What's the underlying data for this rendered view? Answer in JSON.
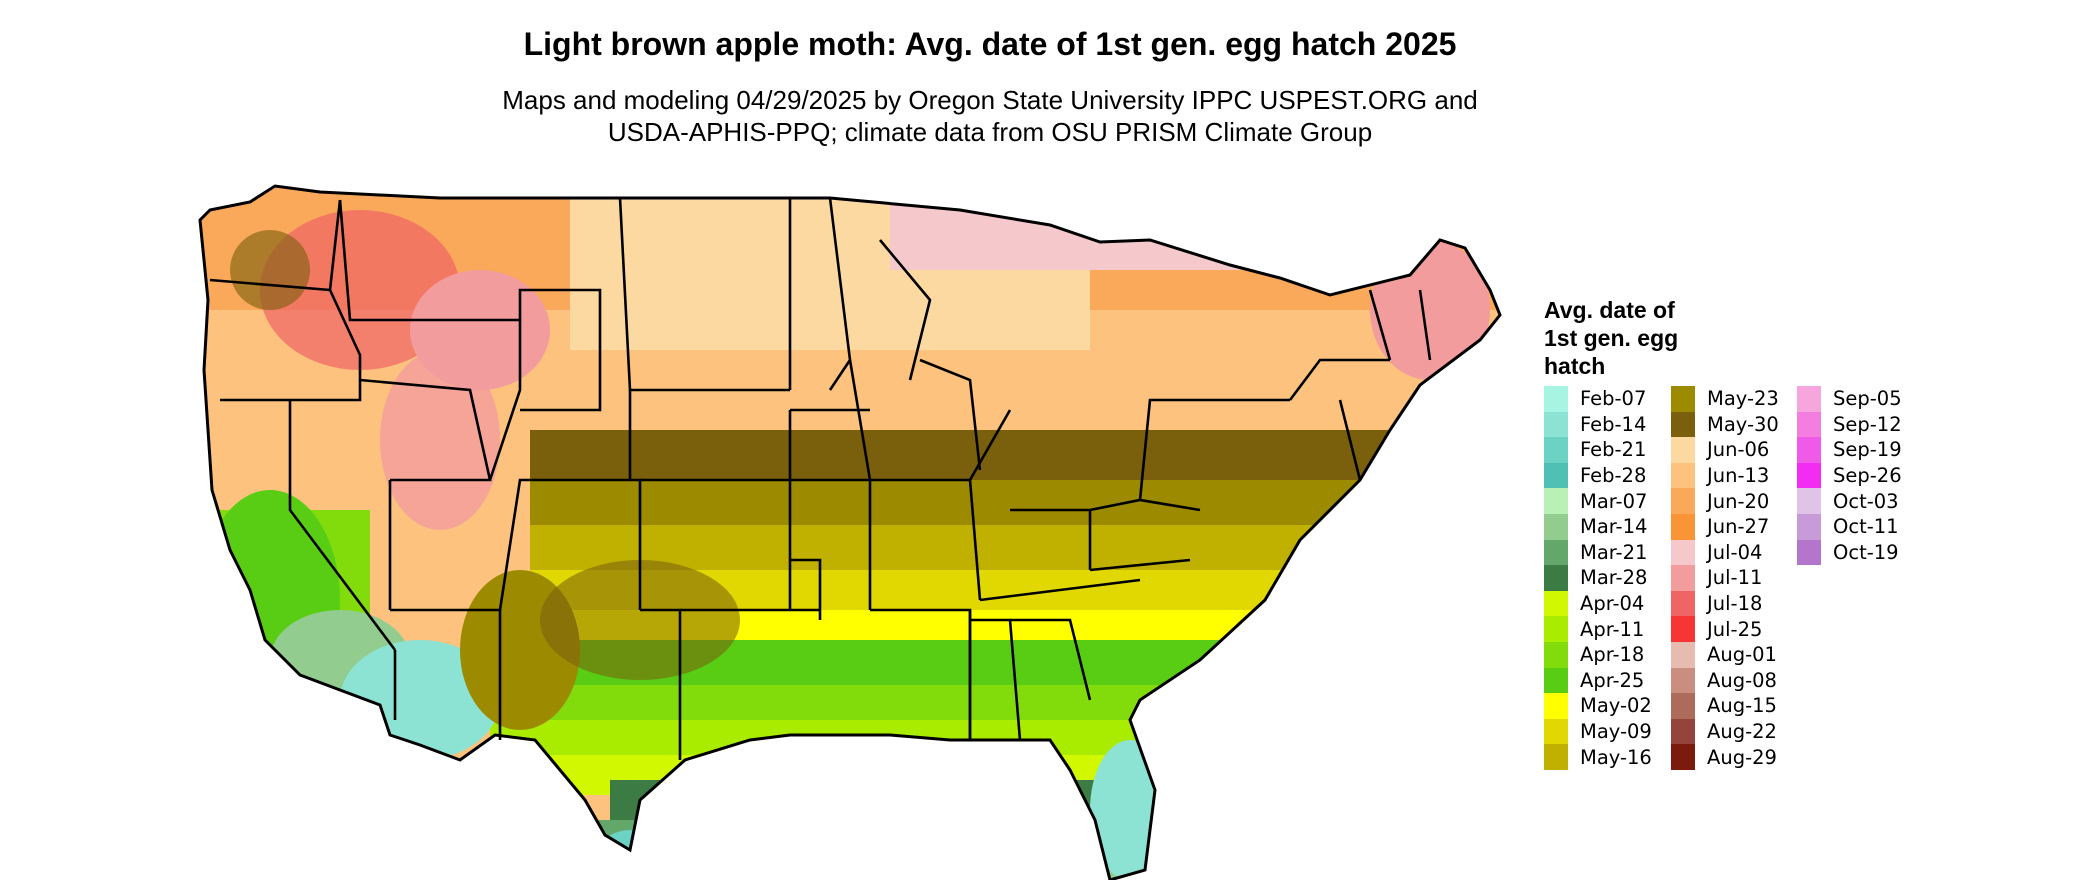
{
  "title": "Light brown apple moth: Avg. date of 1st gen. egg hatch 2025",
  "subtitle_lines": [
    "Maps and modeling 04/29/2025 by Oregon State University IPPC USPEST.ORG and",
    "USDA-APHIS-PPQ; climate data from OSU PRISM Climate Group"
  ],
  "map": {
    "region": "Contiguous United States",
    "style": "gridded date-of-event map with state boundaries"
  },
  "legend": {
    "title_lines": [
      "Avg. date of",
      "1st gen. egg",
      "hatch"
    ],
    "columns": [
      [
        {
          "label": "Feb-07",
          "color": "#a7f4e2"
        },
        {
          "label": "Feb-14",
          "color": "#8ce3d3"
        },
        {
          "label": "Feb-21",
          "color": "#6bd2c4"
        },
        {
          "label": "Feb-28",
          "color": "#4fc0b3"
        },
        {
          "label": "Mar-07",
          "color": "#b9f0b5"
        },
        {
          "label": "Mar-14",
          "color": "#92cc8f"
        },
        {
          "label": "Mar-21",
          "color": "#64a76a"
        },
        {
          "label": "Mar-28",
          "color": "#3d7b45"
        },
        {
          "label": "Apr-04",
          "color": "#d2f800"
        },
        {
          "label": "Apr-11",
          "color": "#a9ec00"
        },
        {
          "label": "Apr-18",
          "color": "#82dc0c"
        },
        {
          "label": "Apr-25",
          "color": "#59cc14"
        },
        {
          "label": "May-02",
          "color": "#ffff00"
        },
        {
          "label": "May-09",
          "color": "#e0d800"
        },
        {
          "label": "May-16",
          "color": "#c0b100"
        }
      ],
      [
        {
          "label": "May-23",
          "color": "#9c8a00"
        },
        {
          "label": "May-30",
          "color": "#7a5f0c"
        },
        {
          "label": "Jun-06",
          "color": "#fdd9a2"
        },
        {
          "label": "Jun-13",
          "color": "#fcc27e"
        },
        {
          "label": "Jun-20",
          "color": "#faa95a"
        },
        {
          "label": "Jun-27",
          "color": "#f99537"
        },
        {
          "label": "Jul-04",
          "color": "#f5c8cc"
        },
        {
          "label": "Jul-11",
          "color": "#f29c9e"
        },
        {
          "label": "Jul-18",
          "color": "#ef6465"
        },
        {
          "label": "Jul-25",
          "color": "#f63535"
        },
        {
          "label": "Aug-01",
          "color": "#e6bcb0"
        },
        {
          "label": "Aug-08",
          "color": "#c98e80"
        },
        {
          "label": "Aug-15",
          "color": "#ad6b5c"
        },
        {
          "label": "Aug-22",
          "color": "#94443a"
        },
        {
          "label": "Aug-29",
          "color": "#7a1b0d"
        }
      ],
      [
        {
          "label": "Sep-05",
          "color": "#f6a6dc"
        },
        {
          "label": "Sep-12",
          "color": "#f37ee0"
        },
        {
          "label": "Sep-19",
          "color": "#f05ae8"
        },
        {
          "label": "Sep-26",
          "color": "#f32cf2"
        },
        {
          "label": "Oct-03",
          "color": "#dfc4e8"
        },
        {
          "label": "Oct-11",
          "color": "#c79bd8"
        },
        {
          "label": "Oct-19",
          "color": "#b476cc"
        }
      ]
    ]
  }
}
